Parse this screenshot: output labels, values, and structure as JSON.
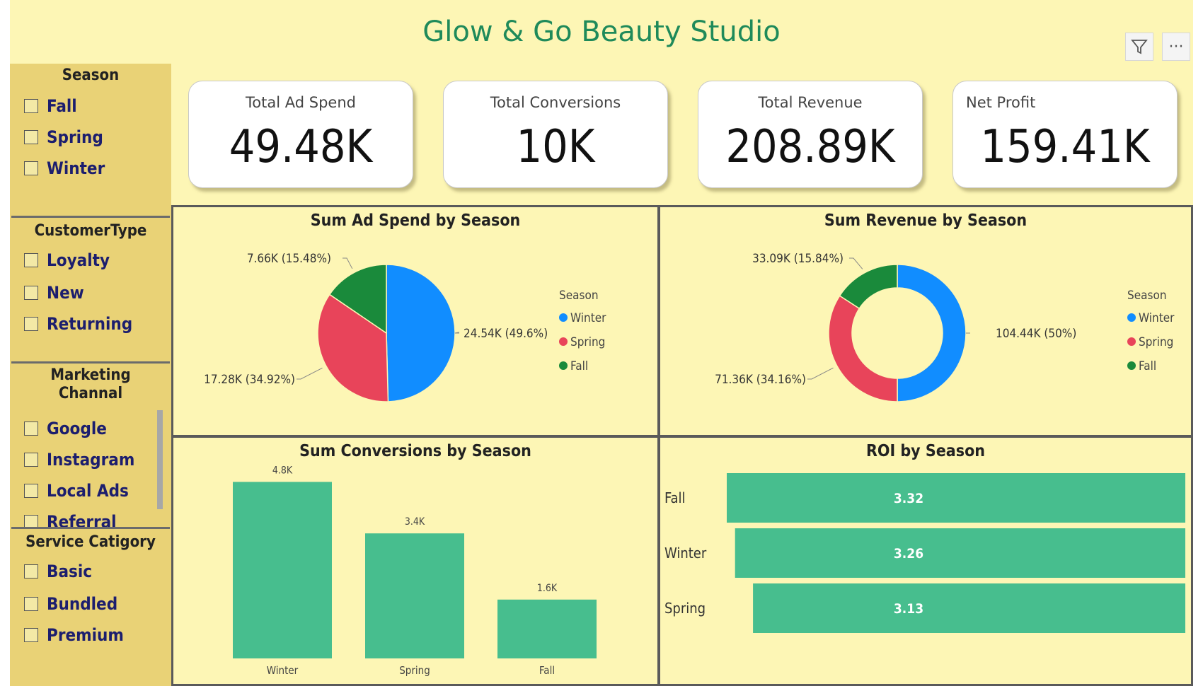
{
  "header": {
    "title": "Glow & Go Beauty Studio",
    "filter_icon": "filter-icon",
    "more_icon": "more-options-icon",
    "more_glyph": "···"
  },
  "slicers": [
    {
      "title": "Season",
      "options": [
        "Fall",
        "Spring",
        "Winter"
      ]
    },
    {
      "title": "CustomerType",
      "options": [
        "Loyalty",
        "New",
        "Returning"
      ]
    },
    {
      "title_line1": "Marketing",
      "title_line2": "Channal",
      "options": [
        "Google",
        "Instagram",
        "Local Ads",
        "Referral"
      ]
    },
    {
      "title": "Service Catigory",
      "options": [
        "Basic",
        "Bundled",
        "Premium"
      ]
    }
  ],
  "kpis": [
    {
      "label": "Total Ad Spend",
      "value": "49.48K"
    },
    {
      "label": "Total Conversions",
      "value": "10K"
    },
    {
      "label": "Total Revenue",
      "value": "208.89K"
    },
    {
      "label": "Net Profit",
      "value": "159.41K"
    }
  ],
  "colors": {
    "winter": "#118dff",
    "spring": "#e8445a",
    "fall": "#1a8a3b",
    "bar": "#47be8e",
    "accent": "#1f8a5a"
  },
  "chart_data": [
    {
      "type": "pie",
      "title": "Sum Ad Spend by Season",
      "legend_title": "Season",
      "legend_position": "right",
      "categories": [
        "Winter",
        "Spring",
        "Fall"
      ],
      "values": [
        24.54,
        17.28,
        7.66
      ],
      "labels": [
        "24.54K (49.6%)",
        "17.28K (34.92%)",
        "7.66K (15.48%)"
      ]
    },
    {
      "type": "pie",
      "donut": true,
      "title": "Sum Revenue by Season",
      "legend_title": "Season",
      "legend_position": "right",
      "categories": [
        "Winter",
        "Spring",
        "Fall"
      ],
      "values": [
        104.44,
        71.36,
        33.09
      ],
      "labels": [
        "104.44K (50%)",
        "71.36K (34.16%)",
        "33.09K (15.84%)"
      ]
    },
    {
      "type": "bar",
      "title": "Sum Conversions by Season",
      "categories": [
        "Winter",
        "Spring",
        "Fall"
      ],
      "values": [
        4.8,
        3.4,
        1.6
      ],
      "labels": [
        "4.8K",
        "3.4K",
        "1.6K"
      ],
      "ylim": [
        0,
        5
      ]
    },
    {
      "type": "bar",
      "orientation": "horizontal",
      "title": "ROI by Season",
      "categories": [
        "Fall",
        "Winter",
        "Spring"
      ],
      "values": [
        3.32,
        3.26,
        3.13
      ],
      "labels": [
        "3.32",
        "3.26",
        "3.13"
      ]
    }
  ]
}
